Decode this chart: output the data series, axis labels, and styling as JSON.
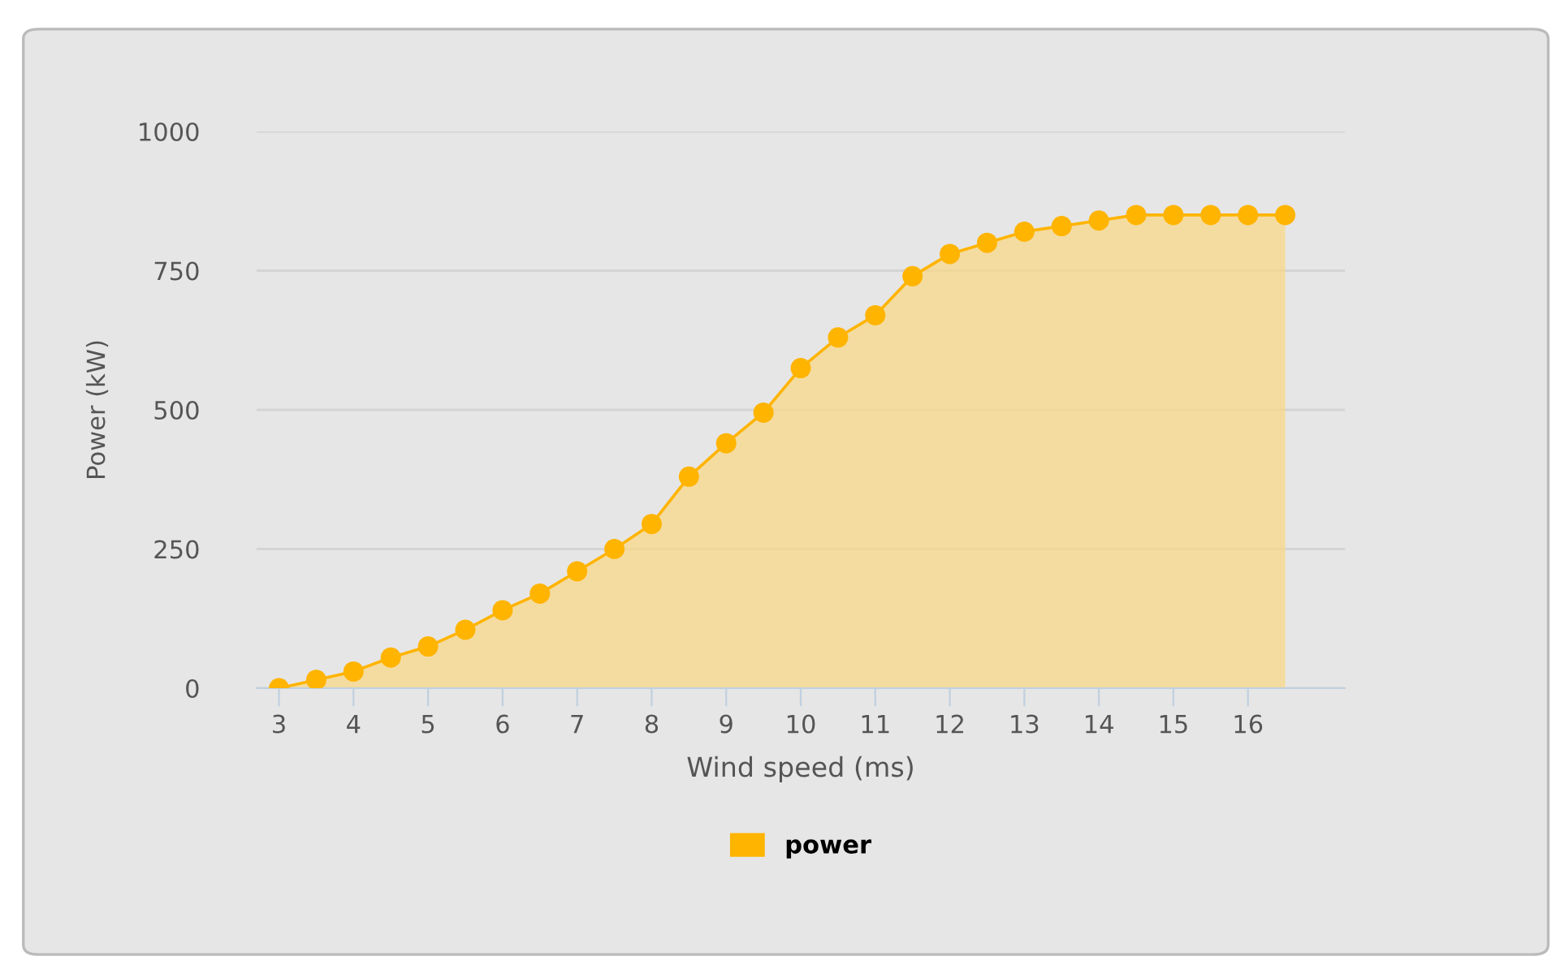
{
  "chart_data": {
    "type": "area",
    "xlabel": "Wind speed (ms)",
    "ylabel": "Power (kW)",
    "x": [
      3,
      3.5,
      4,
      4.5,
      5,
      5.5,
      6,
      6.5,
      7,
      7.5,
      8,
      8.5,
      9,
      9.5,
      10,
      10.5,
      11,
      11.5,
      12,
      12.5,
      13,
      13.5,
      14,
      14.5,
      15,
      15.5,
      16,
      16.5
    ],
    "series": [
      {
        "name": "power",
        "color": "#ffb400",
        "values": [
          0,
          15,
          30,
          55,
          75,
          105,
          140,
          170,
          210,
          250,
          295,
          380,
          440,
          495,
          575,
          630,
          670,
          740,
          780,
          800,
          820,
          830,
          840,
          850,
          850,
          850,
          850,
          850
        ]
      }
    ],
    "xlim": [
      2.7,
      17.3
    ],
    "xticks": [
      3,
      4,
      5,
      6,
      7,
      8,
      9,
      10,
      11,
      12,
      13,
      14,
      15,
      16
    ],
    "ylim": [
      0,
      1000
    ],
    "yticks": [
      0,
      250,
      500,
      750,
      1000
    ],
    "grid": "y",
    "legend": "bottom",
    "marker": "circle",
    "line_style": "solid"
  }
}
